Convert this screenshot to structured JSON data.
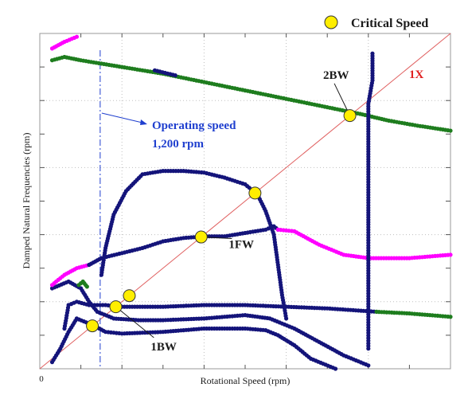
{
  "chart_data": {
    "type": "scatter",
    "title": "",
    "xlabel": "Rotational Speed (rpm)",
    "ylabel": "Damped Natural Frequencies (rpm)",
    "x_tick_labels": [
      "0"
    ],
    "xlim": [
      0,
      1.0
    ],
    "ylim": [
      0,
      1.0
    ],
    "grid": true,
    "legend": {
      "position": "top-right",
      "label": "Critical Speed"
    },
    "colors": {
      "navy": "#14147a",
      "green": "#1e7d1e",
      "magenta": "#ff00ff",
      "red_line": "#e06060",
      "critical_fill": "#ffee00",
      "operating_text": "#1f3fcf",
      "label_1x": "#e02020"
    },
    "operating_speed": {
      "x": 0.147,
      "label_line1": "Operating speed",
      "label_line2": "1,200 rpm"
    },
    "reference_line": {
      "label": "1X",
      "slope": 1.0
    },
    "mode_labels": [
      {
        "text": "2BW",
        "x": 0.69,
        "y": 0.865
      },
      {
        "text": "1FW",
        "x": 0.46,
        "y": 0.36
      },
      {
        "text": "1BW",
        "x": 0.27,
        "y": 0.055
      }
    ],
    "critical_speeds": [
      {
        "x": 0.128,
        "y": 0.128
      },
      {
        "x": 0.185,
        "y": 0.185
      },
      {
        "x": 0.218,
        "y": 0.218
      },
      {
        "x": 0.393,
        "y": 0.393
      },
      {
        "x": 0.524,
        "y": 0.524
      },
      {
        "x": 0.755,
        "y": 0.755
      }
    ],
    "series": [
      {
        "color": "#1e7d1e",
        "points": [
          [
            0.03,
            0.92
          ],
          [
            0.06,
            0.93
          ],
          [
            0.1,
            0.92
          ],
          [
            0.2,
            0.9
          ],
          [
            0.3,
            0.88
          ],
          [
            0.4,
            0.855
          ],
          [
            0.5,
            0.83
          ],
          [
            0.6,
            0.805
          ],
          [
            0.7,
            0.78
          ],
          [
            0.78,
            0.76
          ],
          [
            0.85,
            0.74
          ],
          [
            0.92,
            0.725
          ],
          [
            1.0,
            0.71
          ]
        ]
      },
      {
        "color": "#14147a",
        "points": [
          [
            0.28,
            0.89
          ],
          [
            0.33,
            0.875
          ]
        ]
      },
      {
        "color": "#ff00ff",
        "points": [
          [
            0.03,
            0.955
          ],
          [
            0.06,
            0.975
          ],
          [
            0.09,
            0.99
          ]
        ]
      },
      {
        "color": "#14147a",
        "points": [
          [
            0.03,
            0.02
          ],
          [
            0.05,
            0.06
          ],
          [
            0.07,
            0.11
          ],
          [
            0.09,
            0.15
          ],
          [
            0.13,
            0.13
          ],
          [
            0.16,
            0.11
          ],
          [
            0.2,
            0.105
          ],
          [
            0.3,
            0.11
          ],
          [
            0.4,
            0.12
          ],
          [
            0.5,
            0.12
          ],
          [
            0.55,
            0.115
          ],
          [
            0.58,
            0.1
          ],
          [
            0.62,
            0.07
          ],
          [
            0.66,
            0.03
          ],
          [
            0.72,
            0.0
          ]
        ]
      },
      {
        "color": "#14147a",
        "points": [
          [
            0.06,
            0.12
          ],
          [
            0.07,
            0.19
          ],
          [
            0.09,
            0.2
          ],
          [
            0.12,
            0.19
          ],
          [
            0.16,
            0.19
          ],
          [
            0.2,
            0.185
          ],
          [
            0.3,
            0.185
          ],
          [
            0.4,
            0.19
          ],
          [
            0.5,
            0.19
          ],
          [
            0.6,
            0.185
          ],
          [
            0.7,
            0.18
          ],
          [
            0.82,
            0.17
          ]
        ]
      },
      {
        "color": "#1e7d1e",
        "points": [
          [
            0.82,
            0.17
          ],
          [
            0.9,
            0.165
          ],
          [
            1.0,
            0.155
          ]
        ]
      },
      {
        "color": "#14147a",
        "points": [
          [
            0.03,
            0.24
          ],
          [
            0.07,
            0.26
          ],
          [
            0.1,
            0.24
          ],
          [
            0.12,
            0.2
          ],
          [
            0.14,
            0.17
          ],
          [
            0.18,
            0.15
          ],
          [
            0.24,
            0.145
          ],
          [
            0.3,
            0.145
          ],
          [
            0.4,
            0.15
          ],
          [
            0.5,
            0.16
          ],
          [
            0.56,
            0.15
          ],
          [
            0.62,
            0.12
          ],
          [
            0.68,
            0.08
          ],
          [
            0.74,
            0.04
          ],
          [
            0.8,
            0.01
          ]
        ]
      },
      {
        "color": "#1e7d1e",
        "points": [
          [
            0.095,
            0.25
          ],
          [
            0.105,
            0.26
          ],
          [
            0.115,
            0.245
          ]
        ]
      },
      {
        "color": "#ff00ff",
        "points": [
          [
            0.03,
            0.25
          ],
          [
            0.06,
            0.28
          ],
          [
            0.09,
            0.3
          ],
          [
            0.12,
            0.31
          ]
        ]
      },
      {
        "color": "#14147a",
        "points": [
          [
            0.12,
            0.31
          ],
          [
            0.15,
            0.33
          ],
          [
            0.2,
            0.345
          ],
          [
            0.25,
            0.36
          ],
          [
            0.3,
            0.38
          ],
          [
            0.35,
            0.39
          ],
          [
            0.4,
            0.395
          ],
          [
            0.45,
            0.395
          ],
          [
            0.5,
            0.405
          ],
          [
            0.55,
            0.415
          ],
          [
            0.57,
            0.425
          ],
          [
            0.58,
            0.415
          ]
        ]
      },
      {
        "color": "#ff00ff",
        "points": [
          [
            0.58,
            0.415
          ],
          [
            0.62,
            0.41
          ],
          [
            0.68,
            0.37
          ],
          [
            0.74,
            0.34
          ],
          [
            0.8,
            0.33
          ],
          [
            0.9,
            0.33
          ],
          [
            1.0,
            0.34
          ]
        ]
      },
      {
        "color": "#14147a",
        "points": [
          [
            0.15,
            0.28
          ],
          [
            0.16,
            0.36
          ],
          [
            0.18,
            0.46
          ],
          [
            0.21,
            0.53
          ],
          [
            0.25,
            0.58
          ],
          [
            0.3,
            0.59
          ],
          [
            0.35,
            0.59
          ],
          [
            0.4,
            0.585
          ],
          [
            0.45,
            0.57
          ],
          [
            0.5,
            0.55
          ],
          [
            0.53,
            0.52
          ],
          [
            0.55,
            0.47
          ],
          [
            0.57,
            0.4
          ],
          [
            0.58,
            0.31
          ],
          [
            0.59,
            0.22
          ],
          [
            0.6,
            0.15
          ]
        ]
      },
      {
        "color": "#14147a",
        "points": [
          [
            0.8,
            0.06
          ],
          [
            0.8,
            0.17
          ],
          [
            0.8,
            0.24
          ],
          [
            0.8,
            0.36
          ],
          [
            0.8,
            0.43
          ],
          [
            0.8,
            0.48
          ],
          [
            0.8,
            0.58
          ],
          [
            0.8,
            0.7
          ],
          [
            0.8,
            0.79
          ],
          [
            0.81,
            0.86
          ],
          [
            0.81,
            0.94
          ]
        ]
      }
    ]
  }
}
